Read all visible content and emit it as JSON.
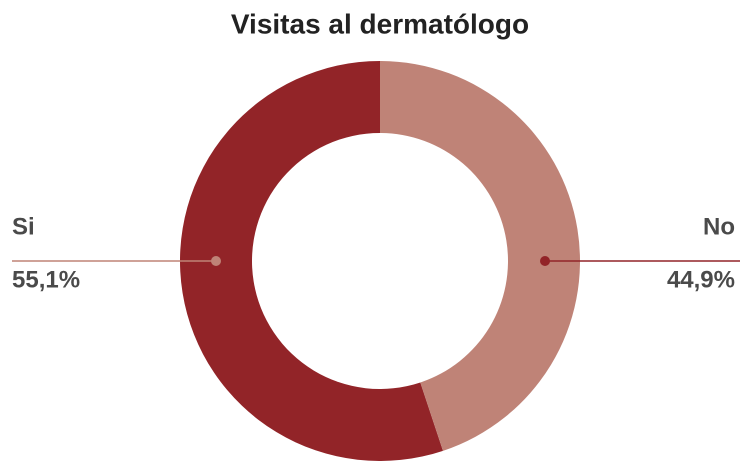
{
  "chart_data": {
    "type": "donut",
    "title": "Visitas al dermatólogo",
    "categories": [
      "Si",
      "No"
    ],
    "values": [
      55.1,
      44.9
    ],
    "value_labels": [
      "55,1%",
      "44,9%"
    ],
    "colors": [
      "#922428",
      "#bf8377"
    ]
  }
}
